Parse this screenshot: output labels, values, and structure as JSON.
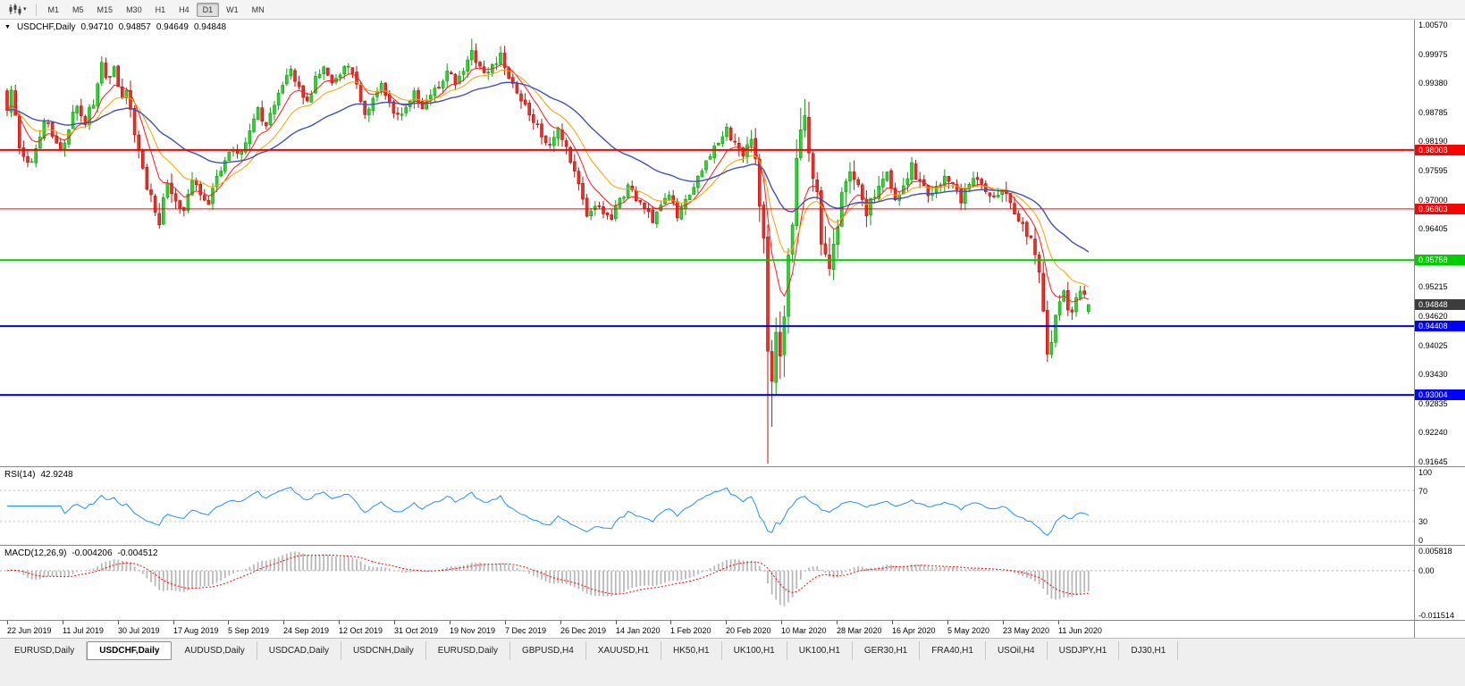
{
  "toolbar": {
    "timeframes": [
      "M1",
      "M5",
      "M15",
      "M30",
      "H1",
      "H4",
      "D1",
      "W1",
      "MN"
    ],
    "active_timeframe": "D1"
  },
  "chart": {
    "symbol_title": "USDCHF,Daily",
    "ohlc": {
      "open": "0.94710",
      "high": "0.94857",
      "low": "0.94649",
      "close": "0.94848"
    },
    "price_axis": {
      "scale_max": 1.0067,
      "scale_min": 0.91545,
      "labels": [
        "1.00570",
        "0.99975",
        "0.99380",
        "0.98785",
        "0.98190",
        "0.97595",
        "0.97000",
        "0.96405",
        "0.95810",
        "0.95215",
        "0.94620",
        "0.94025",
        "0.93430",
        "0.92835",
        "0.92240",
        "0.91645"
      ]
    },
    "hlines": [
      {
        "price": 0.98008,
        "label": "0.98008",
        "color": "#ff0000",
        "width": 2
      },
      {
        "price": 0.96803,
        "label": "0.96803",
        "color": "#ff0000",
        "width": 1
      },
      {
        "price": 0.95758,
        "label": "0.95758",
        "color": "#00cc00",
        "width": 2
      },
      {
        "price": 0.94408,
        "label": "0.94408",
        "color": "#0000ff",
        "width": 2
      },
      {
        "price": 0.93004,
        "label": "0.93004",
        "color": "#0000ff",
        "width": 2
      }
    ],
    "current_price": {
      "value": 0.94848,
      "label": "0.94848",
      "box_color": "#3c3c3c"
    },
    "date_labels": [
      "22 Jun 2019",
      "11 Jul 2019",
      "30 Jul 2019",
      "17 Aug 2019",
      "5 Sep 2019",
      "24 Sep 2019",
      "12 Oct 2019",
      "31 Oct 2019",
      "19 Nov 2019",
      "7 Dec 2019",
      "26 Dec 2019",
      "14 Jan 2020",
      "1 Feb 2020",
      "20 Feb 2020",
      "10 Mar 2020",
      "28 Mar 2020",
      "16 Apr 2020",
      "5 May 2020",
      "23 May 2020",
      "11 Jun 2020"
    ],
    "colors": {
      "candle_up": "#2fd32f",
      "candle_up_border": "#0f9b0f",
      "candle_down": "#ee2e24",
      "candle_down_border": "#b1150f"
    }
  },
  "indicators": {
    "rsi": {
      "label": "RSI(14)",
      "value": "42.9248",
      "color": "#1e90ff",
      "levels": [
        70,
        30
      ],
      "axis_labels": [
        "100",
        "70",
        "30",
        "0"
      ],
      "scale_max": 100,
      "scale_min": 0
    },
    "macd": {
      "label": "MACD(12,26,9)",
      "value_main": "-0.004206",
      "value_signal": "-0.004512",
      "histogram_color": "#b8b8b8",
      "signal_color": "#ff0000",
      "axis_labels": [
        "0.005818",
        "0.00",
        "-0.011514"
      ],
      "scale_max": 0.005818,
      "scale_min": -0.011514
    }
  },
  "tabs": {
    "items": [
      "EURUSD,Daily",
      "USDCHF,Daily",
      "AUDUSD,Daily",
      "USDCAD,Daily",
      "USDCNH,Daily",
      "EURUSD,Daily",
      "GBPUSD,H4",
      "XAUUSD,H1",
      "HK50,H1",
      "UK100,H1",
      "UK100,H1",
      "GER30,H1",
      "FRA40,H1",
      "USOil,H4",
      "USDJPY,H1",
      "DJ30,H1"
    ],
    "active_index": 1
  },
  "chart_data": {
    "type": "candlestick",
    "symbol": "USDCHF",
    "timeframe": "Daily",
    "bars": 264,
    "last_bar": {
      "open": 0.9471,
      "high": 0.94857,
      "low": 0.94649,
      "close": 0.94848
    },
    "moving_averages": [
      {
        "period": 8,
        "color": "#ff1a1a",
        "width": 1
      },
      {
        "period": 16,
        "color": "#ffa000",
        "width": 1
      },
      {
        "period": 40,
        "color": "#3f51b5",
        "width": 1.4
      }
    ],
    "price_path_anchors": [
      [
        0,
        0.988
      ],
      [
        1,
        0.993
      ],
      [
        3,
        0.98
      ],
      [
        5,
        0.977
      ],
      [
        7,
        0.98
      ],
      [
        9,
        0.9865
      ],
      [
        11,
        0.983
      ],
      [
        13,
        0.9795
      ],
      [
        15,
        0.985
      ],
      [
        17,
        0.989
      ],
      [
        19,
        0.986
      ],
      [
        21,
        0.99
      ],
      [
        23,
        0.9975
      ],
      [
        24,
        0.994
      ],
      [
        26,
        0.997
      ],
      [
        28,
        0.991
      ],
      [
        29,
        0.993
      ],
      [
        31,
        0.984
      ],
      [
        33,
        0.976
      ],
      [
        35,
        0.97
      ],
      [
        37,
        0.966
      ],
      [
        39,
        0.973
      ],
      [
        41,
        0.97
      ],
      [
        43,
        0.968
      ],
      [
        45,
        0.9745
      ],
      [
        47,
        0.9715
      ],
      [
        49,
        0.969
      ],
      [
        51,
        0.9745
      ],
      [
        53,
        0.9775
      ],
      [
        55,
        0.981
      ],
      [
        57,
        0.979
      ],
      [
        59,
        0.984
      ],
      [
        61,
        0.988
      ],
      [
        63,
        0.985
      ],
      [
        65,
        0.989
      ],
      [
        67,
        0.993
      ],
      [
        69,
        0.996
      ],
      [
        71,
        0.993
      ],
      [
        73,
        0.99
      ],
      [
        75,
        0.9945
      ],
      [
        77,
        0.997
      ],
      [
        79,
        0.9935
      ],
      [
        81,
        0.996
      ],
      [
        83,
        0.998
      ],
      [
        85,
        0.993
      ],
      [
        87,
        0.988
      ],
      [
        89,
        0.9905
      ],
      [
        91,
        0.9935
      ],
      [
        93,
        0.989
      ],
      [
        95,
        0.9865
      ],
      [
        97,
        0.9895
      ],
      [
        99,
        0.992
      ],
      [
        101,
        0.989
      ],
      [
        103,
        0.991
      ],
      [
        105,
        0.9935
      ],
      [
        107,
        0.996
      ],
      [
        109,
        0.994
      ],
      [
        111,
        0.997
      ],
      [
        113,
        1.0
      ],
      [
        114,
        0.9985
      ],
      [
        116,
        0.995
      ],
      [
        118,
        0.997
      ],
      [
        120,
        0.999
      ],
      [
        122,
        0.995
      ],
      [
        124,
        0.992
      ],
      [
        126,
        0.989
      ],
      [
        128,
        0.986
      ],
      [
        130,
        0.983
      ],
      [
        132,
        0.981
      ],
      [
        134,
        0.9845
      ],
      [
        136,
        0.98
      ],
      [
        138,
        0.976
      ],
      [
        140,
        0.97
      ],
      [
        141,
        0.9665
      ],
      [
        143,
        0.969
      ],
      [
        145,
        0.967
      ],
      [
        147,
        0.966
      ],
      [
        149,
        0.97
      ],
      [
        151,
        0.9725
      ],
      [
        153,
        0.97
      ],
      [
        155,
        0.968
      ],
      [
        157,
        0.966
      ],
      [
        159,
        0.9695
      ],
      [
        161,
        0.9715
      ],
      [
        163,
        0.967
      ],
      [
        165,
        0.9695
      ],
      [
        167,
        0.973
      ],
      [
        169,
        0.976
      ],
      [
        171,
        0.979
      ],
      [
        173,
        0.9815
      ],
      [
        175,
        0.984
      ],
      [
        177,
        0.982
      ],
      [
        179,
        0.9795
      ],
      [
        181,
        0.983
      ],
      [
        182,
        0.978
      ],
      [
        183,
        0.97
      ],
      [
        184,
        0.96
      ],
      [
        185,
        0.937
      ],
      [
        186,
        0.933
      ],
      [
        187,
        0.944
      ],
      [
        188,
        0.94
      ],
      [
        189,
        0.948
      ],
      [
        190,
        0.956
      ],
      [
        191,
        0.965
      ],
      [
        192,
        0.977
      ],
      [
        193,
        0.986
      ],
      [
        194,
        0.988
      ],
      [
        195,
        0.98
      ],
      [
        196,
        0.974
      ],
      [
        197,
        0.97
      ],
      [
        198,
        0.963
      ],
      [
        199,
        0.958
      ],
      [
        200,
        0.954
      ],
      [
        201,
        0.96
      ],
      [
        202,
        0.965
      ],
      [
        203,
        0.97
      ],
      [
        204,
        0.973
      ],
      [
        205,
        0.976
      ],
      [
        206,
        0.975
      ],
      [
        207,
        0.972
      ],
      [
        208,
        0.969
      ],
      [
        209,
        0.966
      ],
      [
        210,
        0.969
      ],
      [
        212,
        0.972
      ],
      [
        214,
        0.9745
      ],
      [
        216,
        0.97
      ],
      [
        218,
        0.9725
      ],
      [
        220,
        0.9765
      ],
      [
        222,
        0.9735
      ],
      [
        224,
        0.9705
      ],
      [
        226,
        0.972
      ],
      [
        228,
        0.9745
      ],
      [
        230,
        0.9725
      ],
      [
        232,
        0.97
      ],
      [
        234,
        0.9725
      ],
      [
        236,
        0.9745
      ],
      [
        238,
        0.972
      ],
      [
        240,
        0.97
      ],
      [
        242,
        0.972
      ],
      [
        244,
        0.969
      ],
      [
        246,
        0.966
      ],
      [
        248,
        0.963
      ],
      [
        250,
        0.96
      ],
      [
        251,
        0.956
      ],
      [
        252,
        0.948
      ],
      [
        253,
        0.939
      ],
      [
        254,
        0.942
      ],
      [
        255,
        0.945
      ],
      [
        256,
        0.949
      ],
      [
        257,
        0.9515
      ],
      [
        258,
        0.948
      ],
      [
        259,
        0.946
      ],
      [
        260,
        0.95
      ],
      [
        261,
        0.952
      ],
      [
        262,
        0.95
      ],
      [
        263,
        0.94848
      ]
    ],
    "volatility_anchors": [
      [
        0,
        1.0
      ],
      [
        25,
        1.0
      ],
      [
        31,
        1.4
      ],
      [
        40,
        1.4
      ],
      [
        50,
        1.0
      ],
      [
        80,
        0.9
      ],
      [
        110,
        1.0
      ],
      [
        122,
        1.0
      ],
      [
        135,
        1.1
      ],
      [
        150,
        0.9
      ],
      [
        170,
        0.9
      ],
      [
        180,
        1.2
      ],
      [
        183,
        2.4
      ],
      [
        186,
        3.2
      ],
      [
        192,
        3.0
      ],
      [
        200,
        2.4
      ],
      [
        208,
        1.6
      ],
      [
        215,
        1.2
      ],
      [
        225,
        1.0
      ],
      [
        240,
        1.0
      ],
      [
        248,
        1.3
      ],
      [
        252,
        1.9
      ],
      [
        257,
        1.5
      ],
      [
        263,
        0.9
      ]
    ],
    "wick_overrides": {
      "23": {
        "high": 0.9992
      },
      "113": {
        "high": 1.0028
      },
      "185": {
        "low": 0.916
      },
      "186": {
        "low": 0.9235
      },
      "194": {
        "high": 0.9905
      },
      "253": {
        "low": 0.9368
      }
    }
  }
}
